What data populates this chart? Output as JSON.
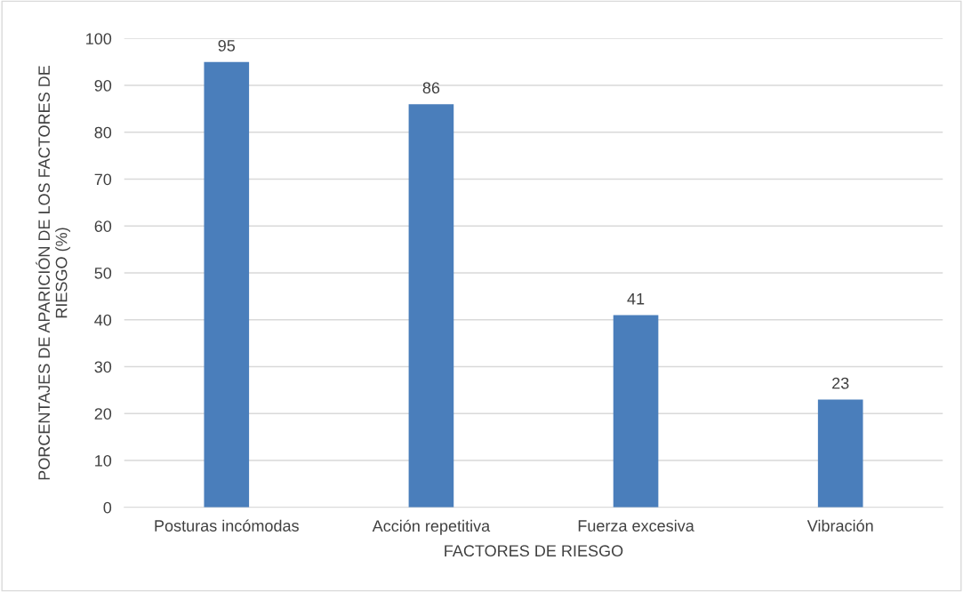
{
  "chart_data": {
    "type": "bar",
    "xlabel": "FACTORES DE RIESGO",
    "ylabel": "PORCENTAJES DE APARICIÓN DE LOS FACTORES DE\nRIESGO (%)",
    "categories": [
      "Posturas incómodas",
      "Acción repetitiva",
      "Fuerza excesiva",
      "Vibración"
    ],
    "values": [
      95,
      86,
      41,
      23
    ],
    "color": "#4a7ebb",
    "ylim": [
      0,
      100
    ],
    "yticks": [
      0,
      10,
      20,
      30,
      40,
      50,
      60,
      70,
      80,
      90,
      100
    ],
    "grid": "y",
    "data_labels": true
  }
}
